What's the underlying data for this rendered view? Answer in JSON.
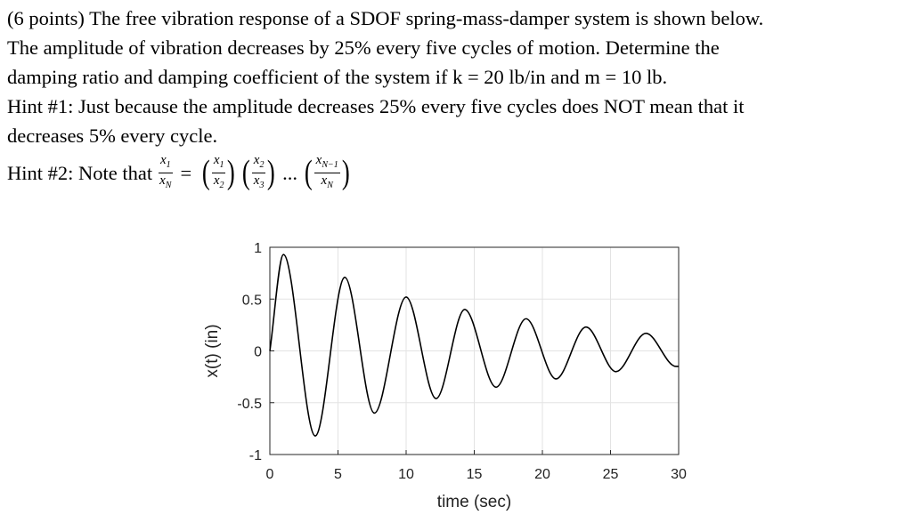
{
  "problem": {
    "line1": "(6 points) The free vibration response of a SDOF spring-mass-damper system is shown below.",
    "line2": "The amplitude of vibration decreases by 25% every five cycles of motion.  Determine the",
    "line3": "damping ratio and damping coefficient of the system if k = 20 lb/in and m = 10 lb.",
    "hint1_line1": "Hint #1: Just because the amplitude decreases 25% every five cycles does NOT mean that it",
    "hint1_line2": "decreases 5% every cycle.",
    "hint2_lead": "Hint #2: Note that",
    "hint2_eq": "=",
    "hint2_dots": "...",
    "hint2_terms": [
      {
        "num": "x",
        "num_sub": "1",
        "den": "x",
        "den_sub": "N"
      },
      {
        "num": "x",
        "num_sub": "1",
        "den": "x",
        "den_sub": "2"
      },
      {
        "num": "x",
        "num_sub": "2",
        "den": "x",
        "den_sub": "3"
      },
      {
        "num": "x",
        "num_sub": "N−1",
        "den": "x",
        "den_sub": "N"
      }
    ]
  },
  "chart_data": {
    "type": "line",
    "xlabel": "time (sec)",
    "ylabel": "x(t) (in)",
    "xlim": [
      0,
      30
    ],
    "ylim": [
      -1,
      1
    ],
    "xticks": [
      "0",
      "5",
      "10",
      "15",
      "20",
      "25",
      "30"
    ],
    "yticks": [
      "1",
      "0.5",
      "0",
      "-0.5",
      "-1"
    ],
    "grid": true,
    "line_color": "#000000",
    "series": [
      {
        "x": [
          0,
          1,
          3.33,
          5.5,
          7.67,
          10,
          12.2,
          14.3,
          16.6,
          18.8,
          21,
          23.2,
          25.4,
          27.6,
          29.8,
          30
        ],
        "values": [
          0,
          0.93,
          -0.82,
          0.71,
          -0.6,
          0.52,
          -0.46,
          0.4,
          -0.35,
          0.31,
          -0.27,
          0.23,
          -0.2,
          0.17,
          -0.15,
          -0.15
        ]
      }
    ]
  }
}
